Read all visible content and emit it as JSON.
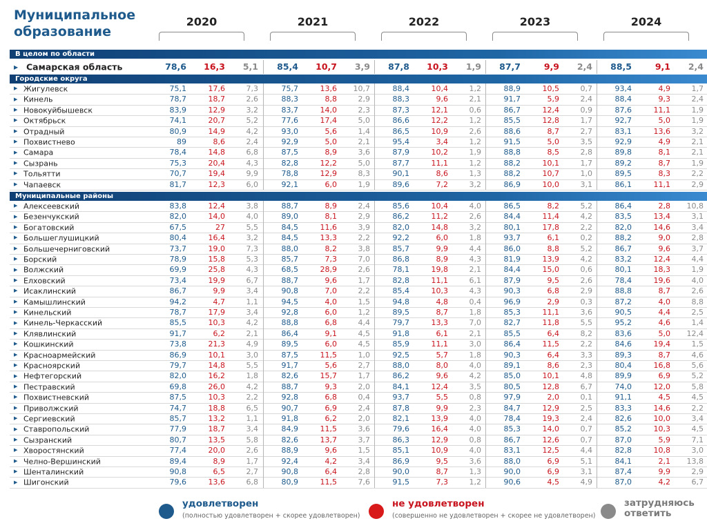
{
  "header": {
    "title": "Муниципальное образование",
    "years": [
      "2020",
      "2021",
      "2022",
      "2023",
      "2024"
    ]
  },
  "sections": {
    "oblast": "В целом по области",
    "cities": "Городские округа",
    "districts": "Муниципальные районы"
  },
  "colors": {
    "satisfied": "#1e5a8c",
    "not_satisfied": "#c8141e",
    "hard": "#8a8a8a",
    "band": "#1f66a5"
  },
  "oblast_row": {
    "name": "Самарская область",
    "values": [
      [
        "78,6",
        "16,3",
        "5,1"
      ],
      [
        "85,4",
        "10,7",
        "3,9"
      ],
      [
        "87,8",
        "10,3",
        "1,9"
      ],
      [
        "87,7",
        "9,9",
        "2,4"
      ],
      [
        "88,5",
        "9,1",
        "2,4"
      ]
    ]
  },
  "cities": [
    {
      "name": "Жигулевск",
      "values": [
        [
          "75,1",
          "17,6",
          "7,3"
        ],
        [
          "75,7",
          "13,6",
          "10,7"
        ],
        [
          "88,4",
          "10,4",
          "1,2"
        ],
        [
          "88,9",
          "10,5",
          "0,7"
        ],
        [
          "93,4",
          "4,9",
          "1,7"
        ]
      ]
    },
    {
      "name": "Кинель",
      "values": [
        [
          "78,7",
          "18,7",
          "2,6"
        ],
        [
          "88,3",
          "8,8",
          "2,9"
        ],
        [
          "88,3",
          "9,6",
          "2,1"
        ],
        [
          "91,7",
          "5,9",
          "2,4"
        ],
        [
          "88,4",
          "9,3",
          "2,4"
        ]
      ]
    },
    {
      "name": "Новокуйбышевск",
      "values": [
        [
          "83,9",
          "12,9",
          "3,2"
        ],
        [
          "83,7",
          "14,0",
          "2,3"
        ],
        [
          "87,3",
          "12,1",
          "0,6"
        ],
        [
          "86,7",
          "12,4",
          "0,9"
        ],
        [
          "87,6",
          "11,1",
          "1,9"
        ]
      ]
    },
    {
      "name": "Октябрьск",
      "values": [
        [
          "74,1",
          "20,7",
          "5,2"
        ],
        [
          "77,6",
          "17,4",
          "5,0"
        ],
        [
          "86,6",
          "12,2",
          "1,2"
        ],
        [
          "85,5",
          "12,8",
          "1,7"
        ],
        [
          "92,7",
          "5,0",
          "1,9"
        ]
      ]
    },
    {
      "name": "Отрадный",
      "values": [
        [
          "80,9",
          "14,9",
          "4,2"
        ],
        [
          "93,0",
          "5,6",
          "1,4"
        ],
        [
          "86,5",
          "10,9",
          "2,6"
        ],
        [
          "88,6",
          "8,7",
          "2,7"
        ],
        [
          "83,1",
          "13,6",
          "3,2"
        ]
      ]
    },
    {
      "name": "Похвистнево",
      "values": [
        [
          "89",
          "8,6",
          "2,4"
        ],
        [
          "92,9",
          "5,0",
          "2,1"
        ],
        [
          "95,4",
          "3,4",
          "1,2"
        ],
        [
          "91,5",
          "5,0",
          "3,5"
        ],
        [
          "92,9",
          "4,9",
          "2,1"
        ]
      ]
    },
    {
      "name": "Самара",
      "values": [
        [
          "78,4",
          "14,8",
          "6,8"
        ],
        [
          "87,5",
          "8,9",
          "3,6"
        ],
        [
          "87,9",
          "10,2",
          "1,9"
        ],
        [
          "88,8",
          "8,5",
          "2,8"
        ],
        [
          "89,8",
          "8,1",
          "2,1"
        ]
      ]
    },
    {
      "name": "Сызрань",
      "values": [
        [
          "75,3",
          "20,4",
          "4,3"
        ],
        [
          "82,8",
          "12,2",
          "5,0"
        ],
        [
          "87,7",
          "11,1",
          "1,2"
        ],
        [
          "88,2",
          "10,1",
          "1,7"
        ],
        [
          "89,2",
          "8,7",
          "1,9"
        ]
      ]
    },
    {
      "name": "Тольятти",
      "values": [
        [
          "70,7",
          "19,4",
          "9,9"
        ],
        [
          "78,8",
          "12,9",
          "8,3"
        ],
        [
          "90,1",
          "8,6",
          "1,3"
        ],
        [
          "88,2",
          "10,7",
          "1,0"
        ],
        [
          "89,5",
          "8,3",
          "2,2"
        ]
      ]
    },
    {
      "name": "Чапаевск",
      "values": [
        [
          "81,7",
          "12,3",
          "6,0"
        ],
        [
          "92,1",
          "6,0",
          "1,9"
        ],
        [
          "89,6",
          "7,2",
          "3,2"
        ],
        [
          "86,9",
          "10,0",
          "3,1"
        ],
        [
          "86,1",
          "11,1",
          "2,9"
        ]
      ]
    }
  ],
  "districts": [
    {
      "name": "Алексеевский",
      "values": [
        [
          "83,8",
          "12,4",
          "3,8"
        ],
        [
          "88,7",
          "8,9",
          "2,4"
        ],
        [
          "85,6",
          "10,4",
          "4,0"
        ],
        [
          "86,5",
          "8,2",
          "5,2"
        ],
        [
          "86,4",
          "2,8",
          "10,8"
        ]
      ]
    },
    {
      "name": "Безенчукский",
      "values": [
        [
          "82,0",
          "14,0",
          "4,0"
        ],
        [
          "89,0",
          "8,1",
          "2,9"
        ],
        [
          "86,2",
          "11,2",
          "2,6"
        ],
        [
          "84,4",
          "11,4",
          "4,2"
        ],
        [
          "83,5",
          "13,4",
          "3,1"
        ]
      ]
    },
    {
      "name": "Богатовский",
      "values": [
        [
          "67,5",
          "27",
          "5,5"
        ],
        [
          "84,5",
          "11,6",
          "3,9"
        ],
        [
          "82,0",
          "14,8",
          "3,2"
        ],
        [
          "80,1",
          "17,8",
          "2,2"
        ],
        [
          "82,0",
          "14,6",
          "3,4"
        ]
      ]
    },
    {
      "name": "Большеглушицкий",
      "values": [
        [
          "80,4",
          "16,4",
          "3,2"
        ],
        [
          "84,5",
          "13,3",
          "2,2"
        ],
        [
          "92,2",
          "6,0",
          "1,8"
        ],
        [
          "93,7",
          "6,1",
          "0,2"
        ],
        [
          "88,2",
          "9,0",
          "2,8"
        ]
      ]
    },
    {
      "name": "Большечерниговский",
      "values": [
        [
          "73,7",
          "19,0",
          "7,3"
        ],
        [
          "88,0",
          "8,2",
          "3,8"
        ],
        [
          "85,7",
          "9,9",
          "4,4"
        ],
        [
          "86,0",
          "8,8",
          "5,2"
        ],
        [
          "86,7",
          "9,6",
          "3,7"
        ]
      ]
    },
    {
      "name": "Борский",
      "values": [
        [
          "78,9",
          "15,8",
          "5,3"
        ],
        [
          "85,7",
          "7,3",
          "7,0"
        ],
        [
          "86,8",
          "8,9",
          "4,3"
        ],
        [
          "81,9",
          "13,9",
          "4,2"
        ],
        [
          "83,2",
          "12,4",
          "4,4"
        ]
      ]
    },
    {
      "name": "Волжский",
      "values": [
        [
          "69,9",
          "25,8",
          "4,3"
        ],
        [
          "68,5",
          "28,9",
          "2,6"
        ],
        [
          "78,1",
          "19,8",
          "2,1"
        ],
        [
          "84,4",
          "15,0",
          "0,6"
        ],
        [
          "80,1",
          "18,3",
          "1,9"
        ]
      ]
    },
    {
      "name": "Елховский",
      "values": [
        [
          "73,4",
          "19,9",
          "6,7"
        ],
        [
          "88,7",
          "9,6",
          "1,7"
        ],
        [
          "82,8",
          "11,1",
          "6,1"
        ],
        [
          "87,9",
          "9,5",
          "2,6"
        ],
        [
          "78,4",
          "19,6",
          "4,0"
        ]
      ]
    },
    {
      "name": "Исаклинский",
      "values": [
        [
          "86,7",
          "9,9",
          "3,4"
        ],
        [
          "90,8",
          "7,0",
          "2,2"
        ],
        [
          "85,4",
          "10,3",
          "4,3"
        ],
        [
          "90,3",
          "6,8",
          "2,9"
        ],
        [
          "88,8",
          "8,7",
          "2,6"
        ]
      ]
    },
    {
      "name": "Камышлинский",
      "values": [
        [
          "94,2",
          "4,7",
          "1,1"
        ],
        [
          "94,5",
          "4,0",
          "1,5"
        ],
        [
          "94,8",
          "4,8",
          "0,4"
        ],
        [
          "96,9",
          "2,9",
          "0,3"
        ],
        [
          "87,2",
          "4,0",
          "8,8"
        ]
      ]
    },
    {
      "name": "Кинельский",
      "values": [
        [
          "78,7",
          "17,9",
          "3,4"
        ],
        [
          "92,8",
          "6,0",
          "1,2"
        ],
        [
          "89,5",
          "8,7",
          "1,8"
        ],
        [
          "85,3",
          "11,1",
          "3,6"
        ],
        [
          "90,5",
          "4,4",
          "2,5"
        ]
      ]
    },
    {
      "name": "Кинель-Черкасский",
      "values": [
        [
          "85,5",
          "10,3",
          "4,2"
        ],
        [
          "88,8",
          "6,8",
          "4,4"
        ],
        [
          "79,7",
          "13,3",
          "7,0"
        ],
        [
          "82,7",
          "11,8",
          "5,5"
        ],
        [
          "95,2",
          "4,6",
          "1,4"
        ]
      ]
    },
    {
      "name": "Клявлинский",
      "values": [
        [
          "91,7",
          "6,2",
          "2,1"
        ],
        [
          "86,4",
          "9,1",
          "4,5"
        ],
        [
          "91,8",
          "6,1",
          "2,1"
        ],
        [
          "85,5",
          "6,4",
          "8,2"
        ],
        [
          "83,6",
          "5,0",
          "12,4"
        ]
      ]
    },
    {
      "name": "Кошкинский",
      "values": [
        [
          "73,8",
          "21,3",
          "4,9"
        ],
        [
          "89,5",
          "6,0",
          "4,5"
        ],
        [
          "85,9",
          "11,1",
          "3,0"
        ],
        [
          "86,4",
          "11,5",
          "2,2"
        ],
        [
          "84,6",
          "19,4",
          "1,5"
        ]
      ]
    },
    {
      "name": "Красноармейский",
      "values": [
        [
          "86,9",
          "10,1",
          "3,0"
        ],
        [
          "87,5",
          "11,5",
          "1,0"
        ],
        [
          "92,5",
          "5,7",
          "1,8"
        ],
        [
          "90,3",
          "6,4",
          "3,3"
        ],
        [
          "89,3",
          "8,7",
          "4,6"
        ]
      ]
    },
    {
      "name": "Красноярский",
      "values": [
        [
          "79,7",
          "14,8",
          "5,5"
        ],
        [
          "91,7",
          "5,6",
          "2,7"
        ],
        [
          "88,0",
          "8,0",
          "4,0"
        ],
        [
          "89,1",
          "8,6",
          "2,3"
        ],
        [
          "80,4",
          "16,8",
          "5,6"
        ]
      ]
    },
    {
      "name": "Нефтегорский",
      "values": [
        [
          "82,0",
          "16,2",
          "1,8"
        ],
        [
          "82,6",
          "15,7",
          "1,7"
        ],
        [
          "86,2",
          "9,6",
          "4,2"
        ],
        [
          "85,0",
          "10,1",
          "4,8"
        ],
        [
          "89,9",
          "6,9",
          "5,2"
        ]
      ]
    },
    {
      "name": "Пестравский",
      "values": [
        [
          "69,8",
          "26,0",
          "4,2"
        ],
        [
          "88,7",
          "9,3",
          "2,0"
        ],
        [
          "84,1",
          "12,4",
          "3,5"
        ],
        [
          "80,5",
          "12,8",
          "6,7"
        ],
        [
          "74,0",
          "12,0",
          "5,8"
        ]
      ]
    },
    {
      "name": "Похвистневский",
      "values": [
        [
          "87,5",
          "10,3",
          "2,2"
        ],
        [
          "92,8",
          "6,8",
          "0,4"
        ],
        [
          "93,7",
          "5,5",
          "0,8"
        ],
        [
          "97,9",
          "2,0",
          "0,1"
        ],
        [
          "91,1",
          "4,5",
          "4,5"
        ]
      ]
    },
    {
      "name": "Приволжский",
      "values": [
        [
          "74,7",
          "18,8",
          "6,5"
        ],
        [
          "90,7",
          "6,9",
          "2,4"
        ],
        [
          "87,8",
          "9,9",
          "2,3"
        ],
        [
          "84,7",
          "12,9",
          "2,5"
        ],
        [
          "83,3",
          "14,6",
          "2,2"
        ]
      ]
    },
    {
      "name": "Сергиевский",
      "values": [
        [
          "85,7",
          "13,2",
          "1,1"
        ],
        [
          "91,8",
          "6,2",
          "2,0"
        ],
        [
          "82,1",
          "13,9",
          "4,0"
        ],
        [
          "78,4",
          "19,3",
          "2,4"
        ],
        [
          "82,6",
          "10,0",
          "3,4"
        ]
      ]
    },
    {
      "name": "Ставропольский",
      "values": [
        [
          "77,9",
          "18,7",
          "3,4"
        ],
        [
          "84,9",
          "11,5",
          "3,6"
        ],
        [
          "79,6",
          "16,4",
          "4,0"
        ],
        [
          "85,3",
          "14,0",
          "0,7"
        ],
        [
          "85,2",
          "10,3",
          "4,5"
        ]
      ]
    },
    {
      "name": "Сызранский",
      "values": [
        [
          "80,7",
          "13,5",
          "5,8"
        ],
        [
          "82,6",
          "13,7",
          "3,7"
        ],
        [
          "86,3",
          "12,9",
          "0,8"
        ],
        [
          "86,7",
          "12,6",
          "0,7"
        ],
        [
          "87,0",
          "5,9",
          "7,1"
        ]
      ]
    },
    {
      "name": "Хворостянский",
      "values": [
        [
          "77,4",
          "20,0",
          "2,6"
        ],
        [
          "88,9",
          "9,6",
          "1,5"
        ],
        [
          "85,1",
          "10,9",
          "4,0"
        ],
        [
          "83,1",
          "12,5",
          "4,4"
        ],
        [
          "82,8",
          "10,8",
          "3,0"
        ]
      ]
    },
    {
      "name": "Челно-Вершинский",
      "values": [
        [
          "89,4",
          "8,9",
          "1,7"
        ],
        [
          "92,4",
          "4,2",
          "3,4"
        ],
        [
          "86,9",
          "9,5",
          "3,6"
        ],
        [
          "88,0",
          "6,9",
          "5,1"
        ],
        [
          "84,1",
          "2,1",
          "13,8"
        ]
      ]
    },
    {
      "name": "Шенталинский",
      "values": [
        [
          "90,8",
          "6,5",
          "2,7"
        ],
        [
          "90,8",
          "6,4",
          "2,8"
        ],
        [
          "90,0",
          "8,7",
          "1,3"
        ],
        [
          "90,0",
          "6,9",
          "3,1"
        ],
        [
          "87,4",
          "9,9",
          "2,9"
        ]
      ]
    },
    {
      "name": "Шигонский",
      "values": [
        [
          "79,6",
          "13,6",
          "6,8"
        ],
        [
          "80,9",
          "11,5",
          "7,6"
        ],
        [
          "91,5",
          "7,3",
          "1,2"
        ],
        [
          "90,6",
          "4,5",
          "4,9"
        ],
        [
          "87,0",
          "4,2",
          "6,7"
        ]
      ]
    }
  ],
  "legend": {
    "satisfied": {
      "title": "удовлетворен",
      "subtitle": "(полностью удовлетворен + скорее удовлетворен)"
    },
    "not_satisfied": {
      "title": "не удовлетворен",
      "subtitle": "(совершенно не удовлетворен + скорее не удовлетворен)"
    },
    "hard": {
      "title": "затрудняюсь ответить"
    }
  }
}
